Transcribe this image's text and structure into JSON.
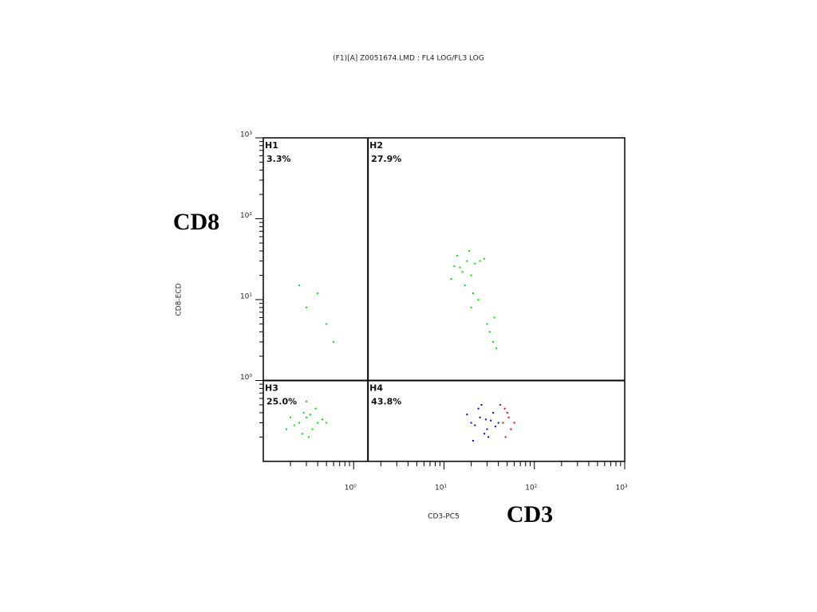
{
  "chart_data": {
    "type": "scatter",
    "title": "(F1)[A] Z0051674.LMD : FL4 LOG/FL3 LOG",
    "x_label": "CD3-PC5",
    "y_label": "CD8-ECD",
    "annotations": [
      "CD8",
      "CD3"
    ],
    "log_x": true,
    "log_y": true,
    "xlim": [
      0.1,
      1000
    ],
    "ylim": [
      0.1,
      1000
    ],
    "xticks": [
      {
        "value": 1,
        "label": "10⁰"
      },
      {
        "value": 10,
        "label": "10¹"
      },
      {
        "value": 100,
        "label": "10²"
      },
      {
        "value": 1000,
        "label": "10³"
      }
    ],
    "yticks": [
      {
        "value": 1,
        "label": "10⁰"
      },
      {
        "value": 10,
        "label": "10¹"
      },
      {
        "value": 100,
        "label": "10²"
      },
      {
        "value": 1000,
        "label": "10³"
      }
    ],
    "quadrant_x": 1.44,
    "quadrant_y": 1,
    "quadrants": [
      {
        "name": "H1",
        "value": 3.3,
        "value_label": "3.3%"
      },
      {
        "name": "H2",
        "value": 27.9,
        "value_label": "27.9%"
      },
      {
        "name": "H3",
        "value": 25.0,
        "value_label": "25.0%"
      },
      {
        "name": "H4",
        "value": 43.8,
        "value_label": "43.8%"
      }
    ],
    "series": [
      {
        "color": "#00e000",
        "x": [
          0.25,
          0.3,
          0.35,
          0.28,
          0.4,
          0.22,
          0.32,
          0.45,
          0.2,
          0.38,
          0.3,
          0.27,
          0.5,
          0.18,
          0.33,
          15,
          18,
          20,
          14,
          22,
          17,
          25,
          12,
          19,
          16,
          21,
          28,
          13,
          24,
          20,
          30,
          35,
          32,
          38,
          36,
          0.3,
          0.5,
          0.4,
          0.6,
          0.25
        ],
        "values": [
          0.3,
          0.35,
          0.25,
          0.4,
          0.3,
          0.28,
          0.2,
          0.33,
          0.35,
          0.45,
          0.55,
          0.22,
          0.3,
          0.25,
          0.38,
          25,
          30,
          20,
          35,
          28,
          15,
          30,
          18,
          40,
          22,
          12,
          32,
          26,
          10,
          8,
          5,
          3,
          4,
          2.5,
          6,
          8,
          5,
          12,
          3,
          15
        ]
      },
      {
        "color": "#0000e0",
        "x": [
          20,
          25,
          30,
          35,
          22,
          28,
          33,
          18,
          40,
          26,
          31,
          24,
          37,
          29,
          21
        ],
        "values": [
          0.3,
          0.35,
          0.25,
          0.4,
          0.28,
          0.22,
          0.32,
          0.38,
          0.3,
          0.5,
          0.2,
          0.45,
          0.27,
          0.33,
          0.18
        ]
      },
      {
        "color": "#e00000",
        "x": [
          45,
          50,
          55,
          42,
          48,
          52,
          60,
          47
        ],
        "values": [
          0.3,
          0.4,
          0.25,
          0.5,
          0.2,
          0.35,
          0.3,
          0.45
        ]
      }
    ]
  }
}
